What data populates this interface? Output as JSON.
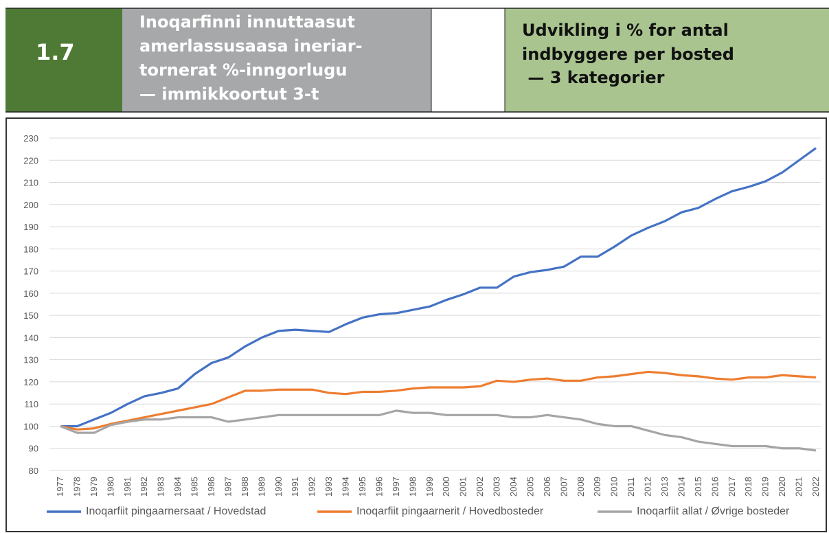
{
  "header": {
    "number": "1.7",
    "greenlandic": [
      "Inoqarfinni innuttaasut",
      "amerlassusaasa ineriar-",
      "tornerat %-inngorlugu",
      "— immikkoortut 3-t"
    ],
    "danish": [
      "Udvikling i % for antal",
      "indbyggere per bosted",
      " — 3 kategorier"
    ]
  },
  "chart_data": {
    "type": "line",
    "x": [
      1977,
      1978,
      1979,
      1980,
      1981,
      1982,
      1983,
      1984,
      1985,
      1986,
      1987,
      1988,
      1989,
      1990,
      1991,
      1992,
      1993,
      1994,
      1995,
      1996,
      1997,
      1998,
      1999,
      2000,
      2001,
      2002,
      2003,
      2004,
      2005,
      2006,
      2007,
      2008,
      2009,
      2010,
      2011,
      2012,
      2013,
      2014,
      2015,
      2016,
      2017,
      2018,
      2019,
      2020,
      2021,
      2022
    ],
    "xlim": [
      1977,
      2022
    ],
    "xticks": [
      1977,
      1978,
      1979,
      1980,
      1981,
      1982,
      1983,
      1984,
      1985,
      1986,
      1987,
      1988,
      1989,
      1990,
      1991,
      1992,
      1993,
      1994,
      1995,
      1996,
      1997,
      1998,
      1999,
      2000,
      2001,
      2002,
      2003,
      2004,
      2005,
      2006,
      2007,
      2008,
      2009,
      2010,
      2011,
      2012,
      2013,
      2014,
      2015,
      2016,
      2017,
      2018,
      2019,
      2020,
      2021,
      2022
    ],
    "ylim": [
      80,
      230
    ],
    "yticks": [
      80,
      90,
      100,
      110,
      120,
      130,
      140,
      150,
      160,
      170,
      180,
      190,
      200,
      210,
      220,
      230
    ],
    "grid": true,
    "legend": "bottom",
    "series": [
      {
        "name": "Inoqarfiit pingaarnersaat / Hovedstad",
        "color": "#4472c4",
        "values": [
          100,
          100,
          103,
          106,
          110,
          113.5,
          115,
          117,
          123.5,
          128.5,
          131,
          136,
          140,
          143,
          143.5,
          143,
          142.5,
          146,
          149,
          150.5,
          151,
          152.5,
          154,
          157,
          159.5,
          162.5,
          162.5,
          167.5,
          169.5,
          170.5,
          172,
          176.5,
          176.5,
          181,
          186,
          189.5,
          192.5,
          196.5,
          198.5,
          202.5,
          206,
          208,
          210.5,
          214.5,
          220,
          225.5
        ]
      },
      {
        "name": "Inoqarfiit pingaarnerit / Hovedbosteder",
        "color": "#ed7d31",
        "values": [
          100,
          98.5,
          99,
          101,
          102.5,
          104,
          105.5,
          107,
          108.5,
          110,
          113,
          116,
          116,
          116.5,
          116.5,
          116.5,
          115,
          114.5,
          115.5,
          115.5,
          116,
          117,
          117.5,
          117.5,
          117.5,
          118,
          120.5,
          120,
          121,
          121.5,
          120.5,
          120.5,
          122,
          122.5,
          123.5,
          124.5,
          124,
          123,
          122.5,
          121.5,
          121,
          122,
          122,
          123,
          122.5,
          122
        ]
      },
      {
        "name": "Inoqarfiit allat / Øvrige bosteder",
        "color": "#a5a5a5",
        "values": [
          100,
          97,
          97,
          100.5,
          102,
          103,
          103,
          104,
          104,
          104,
          102,
          103,
          104,
          105,
          105,
          105,
          105,
          105,
          105,
          105,
          107,
          106,
          106,
          105,
          105,
          105,
          105,
          104,
          104,
          105,
          104,
          103,
          101,
          100,
          100,
          98,
          96,
          95,
          93,
          92,
          91,
          91,
          91,
          90,
          90,
          89
        ]
      }
    ]
  }
}
